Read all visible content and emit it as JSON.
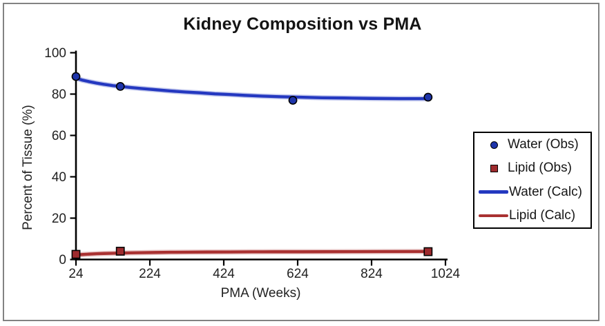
{
  "frame": {
    "border_color": "#828282",
    "background": "#ffffff"
  },
  "chart_data": {
    "type": "scatter",
    "title": "Kidney Composition vs PMA",
    "xlabel": "PMA (Weeks)",
    "ylabel": "Percent of Tissue (%)",
    "xlim": [
      24,
      1024
    ],
    "ylim": [
      0,
      100
    ],
    "xticks": [
      24,
      224,
      424,
      624,
      824,
      1024
    ],
    "yticks": [
      0,
      20,
      40,
      60,
      80,
      100
    ],
    "grid": false,
    "legend_position": "right-outside",
    "axis_color": "#000000",
    "tick_label_color": "#222222",
    "series": [
      {
        "name": "Water (Calc)",
        "type": "line",
        "color": "#2438c0",
        "points": [
          [
            24,
            87.7
          ],
          [
            40,
            86.8
          ],
          [
            60,
            86.0
          ],
          [
            80,
            85.3
          ],
          [
            100,
            84.7
          ],
          [
            124,
            84.1
          ],
          [
            144,
            83.7
          ],
          [
            170,
            83.2
          ],
          [
            200,
            82.7
          ],
          [
            240,
            82.1
          ],
          [
            280,
            81.5
          ],
          [
            320,
            81.0
          ],
          [
            360,
            80.6
          ],
          [
            400,
            80.1
          ],
          [
            440,
            79.8
          ],
          [
            480,
            79.4
          ],
          [
            530,
            79.0
          ],
          [
            580,
            78.7
          ],
          [
            630,
            78.5
          ],
          [
            690,
            78.2
          ],
          [
            750,
            78.1
          ],
          [
            820,
            77.9
          ],
          [
            900,
            77.8
          ],
          [
            977,
            77.8
          ]
        ]
      },
      {
        "name": "Lipid (Calc)",
        "type": "line",
        "color": "#a93131",
        "points": [
          [
            24,
            2.2
          ],
          [
            40,
            2.4
          ],
          [
            60,
            2.6
          ],
          [
            80,
            2.8
          ],
          [
            100,
            2.9
          ],
          [
            124,
            3.0
          ],
          [
            144,
            3.1
          ],
          [
            170,
            3.2
          ],
          [
            200,
            3.3
          ],
          [
            240,
            3.4
          ],
          [
            280,
            3.5
          ],
          [
            330,
            3.55
          ],
          [
            380,
            3.6
          ],
          [
            440,
            3.65
          ],
          [
            500,
            3.7
          ],
          [
            560,
            3.72
          ],
          [
            630,
            3.75
          ],
          [
            700,
            3.78
          ],
          [
            780,
            3.8
          ],
          [
            860,
            3.83
          ],
          [
            977,
            3.85
          ]
        ]
      },
      {
        "name": "Water (Obs)",
        "type": "scatter",
        "marker": "circle",
        "color": "#1e34aa",
        "edge_color": "#000000",
        "points": [
          [
            24,
            88.5
          ],
          [
            144,
            83.7
          ],
          [
            611,
            77.0
          ],
          [
            977,
            78.5
          ]
        ]
      },
      {
        "name": "Lipid (Obs)",
        "type": "scatter",
        "marker": "square",
        "color": "#9e2b2e",
        "edge_color": "#000000",
        "points": [
          [
            24,
            2.5
          ],
          [
            144,
            4.0
          ],
          [
            977,
            3.8
          ]
        ]
      }
    ],
    "legend": [
      {
        "label": "Water (Obs)",
        "swatch": "circle",
        "color": "#1e34aa"
      },
      {
        "label": "Lipid (Obs)",
        "swatch": "square",
        "color": "#9e2b2e"
      },
      {
        "label": "Water (Calc)",
        "swatch": "line",
        "color": "#2438c0"
      },
      {
        "label": "Lipid (Calc)",
        "swatch": "line",
        "color": "#a93131"
      }
    ]
  }
}
